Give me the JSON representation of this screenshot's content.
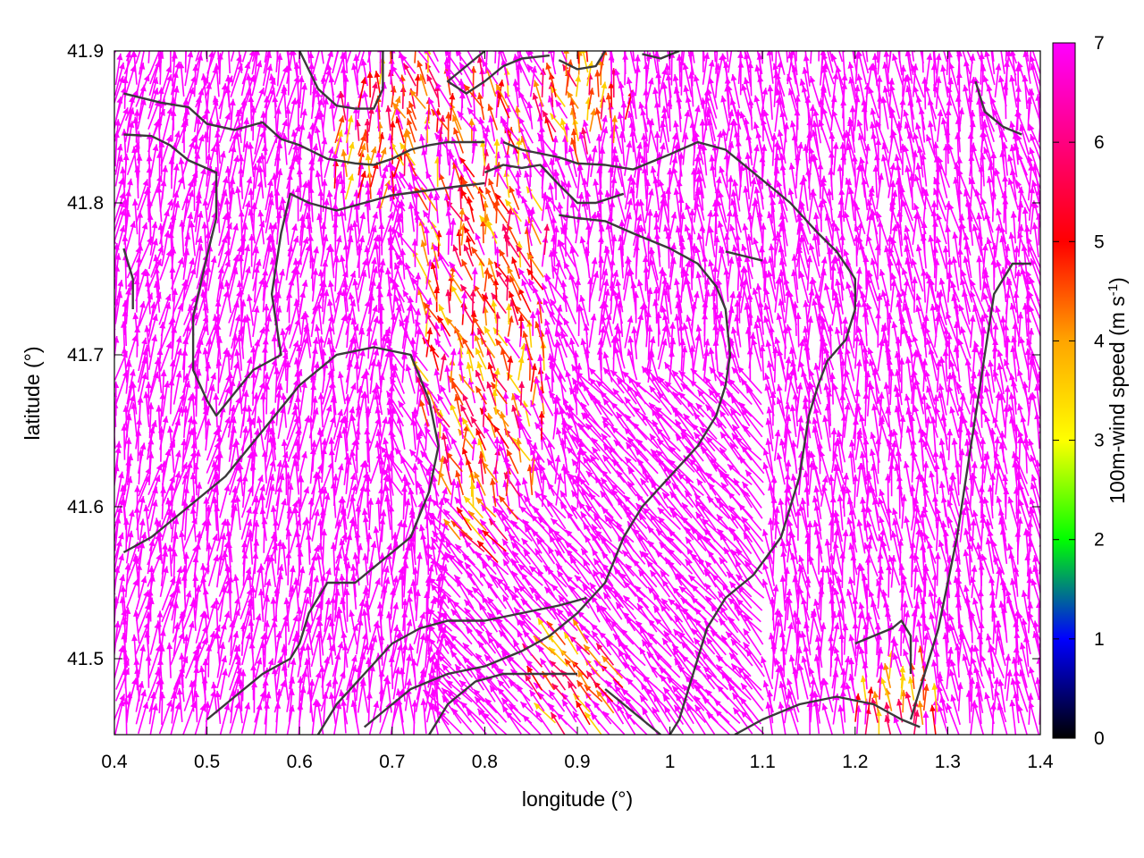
{
  "chart_data": {
    "type": "vector-field",
    "xlabel": "longitude (°)",
    "ylabel": "latitude (°)",
    "xlim": [
      0.4,
      1.4
    ],
    "ylim": [
      41.45,
      41.9
    ],
    "xticks": [
      "0.4",
      "0.5",
      "0.6",
      "0.7",
      "0.8",
      "0.9",
      "1",
      "1.1",
      "1.2",
      "1.3",
      "1.4"
    ],
    "yticks": [
      "41.5",
      "41.6",
      "41.7",
      "41.8",
      "41.9"
    ],
    "grid": false,
    "colorbar": {
      "label": "100m-wind speed (m s-1)",
      "label_main": "100m-wind speed (m s",
      "label_sup": "-1",
      "label_close": ")",
      "range": [
        0,
        7
      ],
      "ticks": [
        "0",
        "1",
        "2",
        "3",
        "4",
        "5",
        "6",
        "7"
      ],
      "colors": [
        "#000000",
        "#0000ff",
        "#00ff00",
        "#ffff00",
        "#ffa500",
        "#ff0000",
        "#ff00ff"
      ]
    },
    "vector_field": {
      "spacing_deg": [
        0.0125,
        0.0075
      ],
      "dominant_color": "#ff00ff",
      "slow_zone_colors": [
        "#ff0000",
        "#ff4000",
        "#ff8c00",
        "#ffd000",
        "#ff0060"
      ],
      "dominant_direction": "toward north / north-northwest",
      "slow_zones": [
        {
          "lon": 0.8,
          "lat": 41.72,
          "note": "low-speed corridor centred near 0.8°E"
        },
        {
          "lon": 0.72,
          "lat": 41.86
        },
        {
          "lon": 0.9,
          "lat": 41.86
        },
        {
          "lon": 0.68,
          "lat": 41.83
        },
        {
          "lon": 0.9,
          "lat": 41.48
        },
        {
          "lon": 1.25,
          "lat": 41.46
        }
      ]
    },
    "contours": [
      [
        [
          0.41,
          41.872
        ],
        [
          0.45,
          41.866
        ],
        [
          0.48,
          41.863
        ],
        [
          0.5,
          41.852
        ],
        [
          0.53,
          41.848
        ],
        [
          0.56,
          41.853
        ],
        [
          0.58,
          41.842
        ],
        [
          0.6,
          41.838
        ],
        [
          0.63,
          41.829
        ],
        [
          0.66,
          41.826
        ],
        [
          0.68,
          41.825
        ],
        [
          0.7,
          41.829
        ],
        [
          0.72,
          41.835
        ],
        [
          0.74,
          41.838
        ],
        [
          0.76,
          41.84
        ],
        [
          0.78,
          41.84
        ],
        [
          0.8,
          41.84
        ]
      ],
      [
        [
          0.41,
          41.845
        ],
        [
          0.44,
          41.844
        ],
        [
          0.46,
          41.838
        ],
        [
          0.48,
          41.828
        ],
        [
          0.51,
          41.82
        ],
        [
          0.51,
          41.79
        ],
        [
          0.5,
          41.765
        ],
        [
          0.485,
          41.725
        ],
        [
          0.485,
          41.69
        ],
        [
          0.5,
          41.67
        ],
        [
          0.51,
          41.66
        ],
        [
          0.53,
          41.675
        ],
        [
          0.55,
          41.69
        ],
        [
          0.58,
          41.7
        ],
        [
          0.57,
          41.74
        ],
        [
          0.58,
          41.78
        ],
        [
          0.59,
          41.806
        ],
        [
          0.61,
          41.8
        ],
        [
          0.64,
          41.795
        ],
        [
          0.67,
          41.8
        ],
        [
          0.7,
          41.805
        ],
        [
          0.76,
          41.81
        ],
        [
          0.8,
          41.813
        ]
      ],
      [
        [
          0.6,
          41.9
        ],
        [
          0.62,
          41.875
        ],
        [
          0.64,
          41.864
        ],
        [
          0.66,
          41.862
        ],
        [
          0.68,
          41.862
        ],
        [
          0.69,
          41.875
        ],
        [
          0.69,
          41.9
        ]
      ],
      [
        [
          0.8,
          41.9
        ],
        [
          0.78,
          41.89
        ],
        [
          0.76,
          41.88
        ],
        [
          0.78,
          41.872
        ],
        [
          0.8,
          41.88
        ],
        [
          0.82,
          41.89
        ],
        [
          0.84,
          41.895
        ],
        [
          0.87,
          41.897
        ]
      ],
      [
        [
          0.88,
          41.894
        ],
        [
          0.9,
          41.888
        ],
        [
          0.92,
          41.89
        ],
        [
          0.93,
          41.9
        ]
      ],
      [
        [
          0.82,
          41.84
        ],
        [
          0.84,
          41.835
        ],
        [
          0.88,
          41.83
        ],
        [
          0.9,
          41.826
        ],
        [
          0.93,
          41.825
        ],
        [
          0.96,
          41.822
        ],
        [
          1.0,
          41.832
        ],
        [
          1.03,
          41.84
        ],
        [
          1.06,
          41.835
        ],
        [
          1.08,
          41.825
        ],
        [
          1.1,
          41.815
        ],
        [
          1.13,
          41.8
        ],
        [
          1.16,
          41.78
        ],
        [
          1.18,
          41.768
        ],
        [
          1.2,
          41.75
        ],
        [
          1.2,
          41.73
        ],
        [
          1.19,
          41.71
        ],
        [
          1.17,
          41.696
        ],
        [
          1.16,
          41.68
        ],
        [
          1.15,
          41.66
        ],
        [
          1.14,
          41.62
        ],
        [
          1.13,
          41.6
        ],
        [
          1.12,
          41.58
        ],
        [
          1.09,
          41.555
        ],
        [
          1.06,
          41.54
        ],
        [
          1.04,
          41.52
        ],
        [
          1.03,
          41.5
        ],
        [
          1.02,
          41.48
        ],
        [
          1.01,
          41.46
        ],
        [
          1.0,
          41.45
        ]
      ],
      [
        [
          0.8,
          41.82
        ],
        [
          0.82,
          41.825
        ],
        [
          0.84,
          41.823
        ],
        [
          0.86,
          41.825
        ],
        [
          0.88,
          41.812
        ],
        [
          0.9,
          41.8
        ],
        [
          0.92,
          41.8
        ],
        [
          0.95,
          41.806
        ]
      ],
      [
        [
          0.88,
          41.792
        ],
        [
          0.9,
          41.79
        ],
        [
          0.93,
          41.788
        ],
        [
          0.96,
          41.78
        ],
        [
          1.0,
          41.77
        ],
        [
          1.03,
          41.76
        ],
        [
          1.05,
          41.745
        ],
        [
          1.06,
          41.73
        ],
        [
          1.065,
          41.7
        ],
        [
          1.06,
          41.68
        ],
        [
          1.05,
          41.66
        ],
        [
          1.03,
          41.64
        ],
        [
          1.0,
          41.62
        ],
        [
          0.97,
          41.6
        ],
        [
          0.95,
          41.58
        ],
        [
          0.93,
          41.55
        ],
        [
          0.9,
          41.53
        ],
        [
          0.87,
          41.515
        ],
        [
          0.84,
          41.505
        ],
        [
          0.8,
          41.495
        ],
        [
          0.76,
          41.49
        ],
        [
          0.72,
          41.48
        ],
        [
          0.69,
          41.465
        ],
        [
          0.67,
          41.455
        ]
      ],
      [
        [
          0.9,
          41.49
        ],
        [
          0.86,
          41.49
        ],
        [
          0.82,
          41.49
        ],
        [
          0.79,
          41.485
        ],
        [
          0.76,
          41.47
        ],
        [
          0.74,
          41.45
        ]
      ],
      [
        [
          0.93,
          41.48
        ],
        [
          0.95,
          41.47
        ],
        [
          0.97,
          41.46
        ],
        [
          0.99,
          41.45
        ]
      ],
      [
        [
          0.62,
          41.45
        ],
        [
          0.64,
          41.47
        ],
        [
          0.67,
          41.49
        ],
        [
          0.7,
          41.51
        ],
        [
          0.73,
          41.52
        ],
        [
          0.76,
          41.525
        ],
        [
          0.8,
          41.525
        ],
        [
          0.84,
          41.53
        ],
        [
          0.88,
          41.535
        ],
        [
          0.91,
          41.54
        ]
      ],
      [
        [
          0.5,
          41.46
        ],
        [
          0.53,
          41.475
        ],
        [
          0.56,
          41.49
        ],
        [
          0.59,
          41.5
        ],
        [
          0.6,
          41.51
        ],
        [
          0.61,
          41.53
        ],
        [
          0.63,
          41.55
        ],
        [
          0.66,
          41.55
        ],
        [
          0.69,
          41.565
        ],
        [
          0.72,
          41.58
        ],
        [
          0.74,
          41.61
        ],
        [
          0.75,
          41.64
        ],
        [
          0.74,
          41.67
        ],
        [
          0.72,
          41.7
        ],
        [
          0.68,
          41.705
        ],
        [
          0.64,
          41.7
        ],
        [
          0.6,
          41.68
        ],
        [
          0.56,
          41.65
        ],
        [
          0.52,
          41.62
        ],
        [
          0.48,
          41.6
        ],
        [
          0.44,
          41.58
        ],
        [
          0.41,
          41.57
        ]
      ],
      [
        [
          1.26,
          41.46
        ],
        [
          1.27,
          41.48
        ],
        [
          1.28,
          41.5
        ],
        [
          1.29,
          41.52
        ],
        [
          1.3,
          41.55
        ],
        [
          1.31,
          41.58
        ],
        [
          1.32,
          41.62
        ],
        [
          1.33,
          41.66
        ],
        [
          1.34,
          41.7
        ],
        [
          1.35,
          41.74
        ],
        [
          1.37,
          41.76
        ],
        [
          1.39,
          41.76
        ]
      ],
      [
        [
          1.2,
          41.51
        ],
        [
          1.22,
          41.515
        ],
        [
          1.24,
          41.52
        ],
        [
          1.25,
          41.525
        ],
        [
          1.26,
          41.515
        ],
        [
          1.26,
          41.49
        ]
      ],
      [
        [
          1.07,
          41.45
        ],
        [
          1.1,
          41.46
        ],
        [
          1.14,
          41.47
        ],
        [
          1.18,
          41.475
        ],
        [
          1.22,
          41.47
        ],
        [
          1.25,
          41.46
        ],
        [
          1.27,
          41.455
        ]
      ],
      [
        [
          1.33,
          41.88
        ],
        [
          1.34,
          41.86
        ],
        [
          1.36,
          41.85
        ],
        [
          1.38,
          41.845
        ]
      ],
      [
        [
          0.41,
          41.77
        ],
        [
          0.42,
          41.75
        ],
        [
          0.42,
          41.73
        ]
      ],
      [
        [
          1.06,
          41.768
        ],
        [
          1.08,
          41.765
        ],
        [
          1.1,
          41.762
        ]
      ],
      [
        [
          0.97,
          41.898
        ],
        [
          0.99,
          41.895
        ],
        [
          1.01,
          41.9
        ]
      ]
    ]
  }
}
